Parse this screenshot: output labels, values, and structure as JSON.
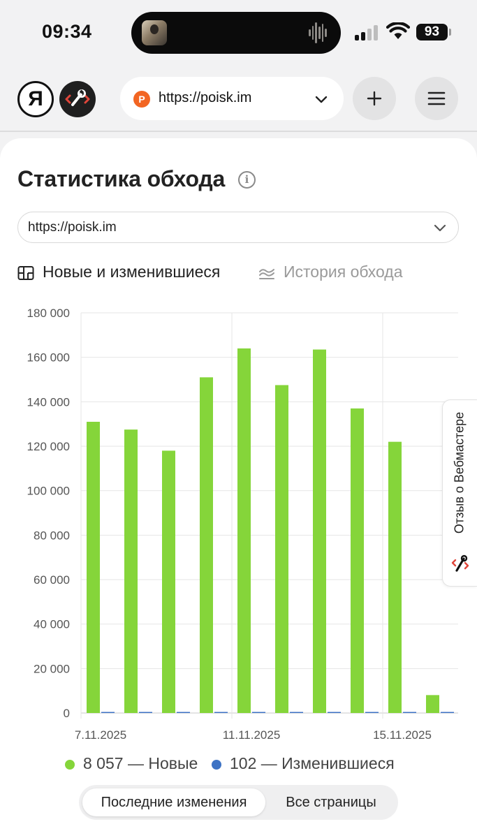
{
  "status_bar": {
    "time": "09:34",
    "battery": "93"
  },
  "browser": {
    "logo_letter": "Я",
    "favicon_letter": "P",
    "url": "https://poisk.im",
    "icons": [
      "yandex-logo",
      "webmaster-tools-icon",
      "chevron-down-icon",
      "plus-icon",
      "hamburger-menu-icon"
    ]
  },
  "page": {
    "title": "Статистика обхода",
    "info_icon_glyph": "i",
    "site_select": {
      "value": "https://poisk.im"
    },
    "tabs": [
      {
        "label": "Новые и изменившиеся",
        "icon": "grid-icon",
        "active": true
      },
      {
        "label": "История обхода",
        "icon": "wave-lines-icon",
        "active": false
      }
    ]
  },
  "chart_data": {
    "type": "bar",
    "x": [
      "7.11.2025",
      "8.11.2025",
      "9.11.2025",
      "10.11.2025",
      "11.11.2025",
      "12.11.2025",
      "13.11.2025",
      "14.11.2025",
      "15.11.2025",
      "16.11.2025"
    ],
    "x_tick_labels": [
      "7.11.2025",
      "11.11.2025",
      "15.11.2025"
    ],
    "y_tick_labels": [
      "180 000",
      "160 000",
      "140 000",
      "120 000",
      "100 000",
      "80 000",
      "60 000",
      "40 000",
      "20 000",
      "0"
    ],
    "ylim": [
      0,
      180000
    ],
    "grid": true,
    "series": [
      {
        "name": "Новые",
        "color": "#85d53a",
        "values": [
          131000,
          127500,
          118000,
          151000,
          164000,
          147500,
          163500,
          137000,
          122000,
          8057
        ]
      },
      {
        "name": "Изменившиеся",
        "color": "#3d72c4",
        "values": [
          0,
          150,
          0,
          0,
          150,
          0,
          0,
          150,
          150,
          102
        ]
      }
    ]
  },
  "legend": {
    "new_label": "8 057 — Новые",
    "new_color": "#85d53a",
    "changed_label": "102 — Изменившиеся",
    "changed_color": "#3d72c4"
  },
  "segmented": {
    "options": [
      "Последние изменения",
      "Все страницы"
    ],
    "selected": "Последние изменения"
  },
  "feedback": {
    "label": "Отзыв о Вебмастере",
    "icon": "wrench-brackets-icon"
  }
}
